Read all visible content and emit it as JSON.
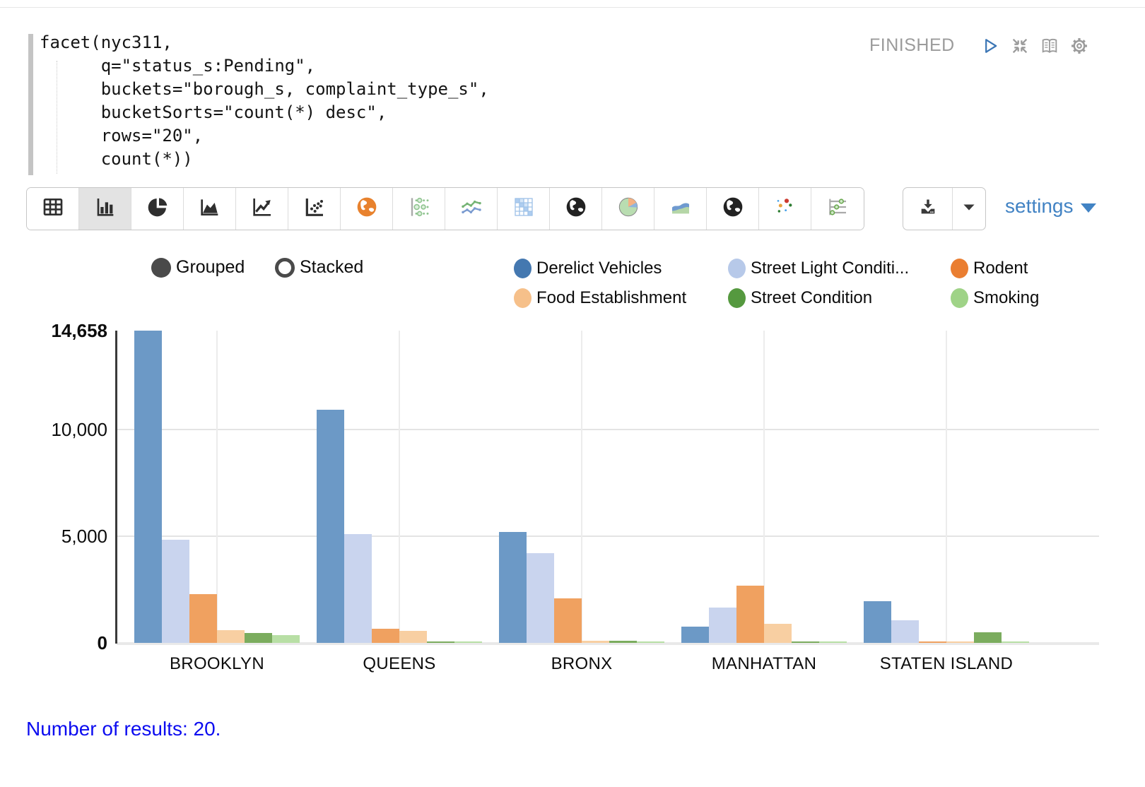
{
  "editor": {
    "code_lines": [
      "facet(nyc311,",
      "      q=\"status_s:Pending\",",
      "      buckets=\"borough_s, complaint_type_s\",",
      "      bucketSorts=\"count(*) desc\",",
      "      rows=\"20\",",
      "      count(*))"
    ],
    "status_label": "FINISHED"
  },
  "header_icons": [
    "play",
    "collapse",
    "book",
    "gear"
  ],
  "toolbar": {
    "chart_type_buttons": [
      {
        "name": "table",
        "selected": false
      },
      {
        "name": "bar-chart",
        "selected": true
      },
      {
        "name": "pie-chart",
        "selected": false
      },
      {
        "name": "area-chart",
        "selected": false
      },
      {
        "name": "line-chart",
        "selected": false
      },
      {
        "name": "scatter-plot",
        "selected": false
      },
      {
        "name": "globe-map-orange",
        "selected": false
      },
      {
        "name": "bubble-chart",
        "selected": false
      },
      {
        "name": "multi-series-line",
        "selected": false
      },
      {
        "name": "heatmap",
        "selected": false
      },
      {
        "name": "globe-map-dark",
        "selected": false
      },
      {
        "name": "pie-chart-color",
        "selected": false
      },
      {
        "name": "area-chart-color",
        "selected": false
      },
      {
        "name": "globe-map-dark-2",
        "selected": false
      },
      {
        "name": "scatter-color",
        "selected": false
      },
      {
        "name": "parallel-coordinates",
        "selected": false
      }
    ],
    "settings_label": "settings"
  },
  "controls": {
    "options": [
      {
        "label": "Grouped",
        "selected": true
      },
      {
        "label": "Stacked",
        "selected": false
      }
    ]
  },
  "legend": [
    {
      "label": "Derelict Vehicles",
      "color": "#4478b0"
    },
    {
      "label": "Street Light Conditi...",
      "color": "#b7c9e9"
    },
    {
      "label": "Rodent",
      "color": "#ea7e31"
    },
    {
      "label": "Food Establishment",
      "color": "#f6c08a"
    },
    {
      "label": "Street Condition",
      "color": "#55993f"
    },
    {
      "label": "Smoking",
      "color": "#9fd387"
    }
  ],
  "chart_data": {
    "type": "bar",
    "mode": "grouped",
    "title": "",
    "categories": [
      "BROOKLYN",
      "QUEENS",
      "BRONX",
      "MANHATTAN",
      "STATEN ISLAND"
    ],
    "series": [
      {
        "name": "Derelict Vehicles",
        "color": "#6c99c6",
        "values": [
          14658,
          10950,
          5200,
          760,
          1950
        ]
      },
      {
        "name": "Street Light Conditi...",
        "color": "#c9d4ee",
        "values": [
          4850,
          5100,
          4200,
          1650,
          1060
        ]
      },
      {
        "name": "Rodent",
        "color": "#f0a160",
        "values": [
          2280,
          650,
          2100,
          2700,
          75
        ]
      },
      {
        "name": "Food Establishment",
        "color": "#f8cfa2",
        "values": [
          600,
          560,
          110,
          880,
          60
        ]
      },
      {
        "name": "Street Condition",
        "color": "#7bac5e",
        "values": [
          450,
          80,
          110,
          80,
          500
        ]
      },
      {
        "name": "Smoking",
        "color": "#b8dfa5",
        "values": [
          370,
          80,
          70,
          60,
          55
        ]
      }
    ],
    "ylim": [
      0,
      14658
    ],
    "yticks": [
      {
        "label": "14,658",
        "value": 14658,
        "bold": true
      },
      {
        "label": "10,000",
        "value": 10000,
        "bold": false
      },
      {
        "label": "5,000",
        "value": 5000,
        "bold": false
      },
      {
        "label": "0",
        "value": 0,
        "bold": true
      }
    ],
    "grid_values": [
      5000,
      10000
    ],
    "legend_position": "top-right"
  },
  "footer": {
    "results_text": "Number of results: 20."
  }
}
